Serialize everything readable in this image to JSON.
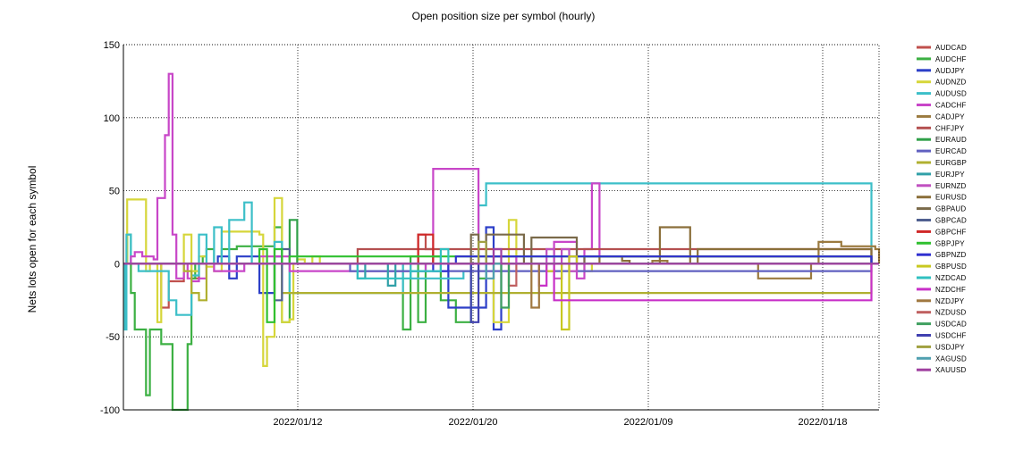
{
  "chart_data": {
    "type": "line",
    "title": "Open position size per symbol (hourly)",
    "xlabel": "",
    "ylabel": "Nets lots open for each symbol",
    "ylim": [
      -100,
      150
    ],
    "yticks": [
      -100,
      -50,
      0,
      50,
      100,
      150
    ],
    "xtick_labels": [
      "2022/01/12",
      "2022/01/20",
      "2022/01/09",
      "2022/01/18"
    ],
    "x_range": [
      0,
      100
    ],
    "grid": true,
    "legend_position": "right",
    "series": [
      {
        "name": "AUDCAD",
        "color": "#c0504d",
        "x": [
          0,
          5,
          6,
          8,
          9,
          10,
          34,
          39,
          40,
          41,
          99,
          100
        ],
        "y": [
          0,
          -30,
          -12,
          0,
          -10,
          0,
          0,
          20,
          10,
          0,
          0,
          0
        ]
      },
      {
        "name": "AUDCHF",
        "color": "#3cb043",
        "x": [
          0,
          0.5,
          1,
          1.5,
          2.5,
          3,
          3.5,
          5,
          5.5,
          6.5,
          7.5,
          8.5,
          9,
          9.5,
          10,
          10.5,
          11,
          12,
          13,
          15,
          19,
          20,
          21,
          22,
          36,
          37,
          38,
          39,
          40,
          41,
          42,
          44,
          46,
          47,
          48,
          99,
          100
        ],
        "y": [
          0,
          20,
          -20,
          -45,
          -45,
          -90,
          -45,
          -55,
          -55,
          -100,
          -100,
          -55,
          -10,
          0,
          0,
          5,
          10,
          0,
          10,
          12,
          12,
          25,
          -40,
          0,
          0,
          -45,
          5,
          -40,
          0,
          5,
          -25,
          -40,
          0,
          -10,
          0,
          0,
          0
        ]
      },
      {
        "name": "AUDJPY",
        "color": "#2c3fc8",
        "x": [
          0,
          10,
          12,
          12.5,
          14,
          15,
          16,
          18,
          20,
          21,
          42,
          43,
          48,
          49,
          50,
          99,
          100
        ],
        "y": [
          0,
          0,
          0,
          5,
          -10,
          5,
          5,
          -20,
          5,
          0,
          0,
          -30,
          25,
          -45,
          0,
          0,
          0
        ]
      },
      {
        "name": "AUDNZD",
        "color": "#d6d63a",
        "x": [
          0,
          0.5,
          1,
          3,
          3.5,
          4,
          4.5,
          5,
          8,
          9,
          10,
          11,
          12,
          13,
          15,
          18,
          18.5,
          19,
          20,
          21,
          22,
          22.5,
          23,
          24,
          25,
          26,
          44,
          49,
          51,
          52,
          60,
          61,
          62,
          99,
          100
        ],
        "y": [
          0,
          44,
          44,
          -5,
          0,
          0,
          -40,
          0,
          20,
          -5,
          5,
          -2,
          -5,
          22,
          22,
          20,
          -70,
          -50,
          45,
          -40,
          -38,
          0,
          3,
          0,
          5,
          0,
          0,
          -40,
          30,
          0,
          0,
          -5,
          0,
          0,
          0
        ]
      },
      {
        "name": "AUDUSD",
        "color": "#3cbfc8",
        "x": [
          0,
          0.2,
          0.4,
          1,
          2,
          6,
          7,
          9,
          10,
          11,
          12,
          13,
          14,
          16,
          17,
          19,
          19.5,
          20,
          21,
          22,
          37,
          38,
          44,
          45,
          46,
          47,
          48,
          99,
          100
        ],
        "y": [
          0,
          -45,
          20,
          0,
          -5,
          -25,
          -35,
          -8,
          20,
          0,
          25,
          0,
          30,
          42,
          0,
          0,
          0,
          15,
          0,
          -20,
          0,
          -10,
          -10,
          -5,
          0,
          40,
          55,
          0,
          0
        ]
      },
      {
        "name": "CADCHF",
        "color": "#c846c8",
        "x": [
          0,
          1,
          1.5,
          2.5,
          4,
          4.5,
          5,
          5.5,
          6,
          6.5,
          7,
          7.5,
          8,
          8.5,
          9,
          10,
          11,
          12,
          14,
          16,
          18,
          22,
          40,
          41,
          42,
          44,
          45,
          46,
          47,
          48,
          50,
          52,
          56,
          57,
          59,
          60,
          61,
          62,
          63,
          99,
          100
        ],
        "y": [
          0,
          5,
          8,
          5,
          3,
          45,
          45,
          88,
          130,
          20,
          -10,
          -10,
          0,
          -10,
          -12,
          -10,
          0,
          -5,
          -5,
          0,
          5,
          -5,
          0,
          65,
          65,
          65,
          65,
          65,
          0,
          5,
          5,
          0,
          0,
          15,
          15,
          -10,
          10,
          55,
          5,
          0,
          0
        ]
      },
      {
        "name": "CADJPY",
        "color": "#9b7a3f",
        "x": [
          0,
          60,
          62,
          65,
          68,
          70,
          72,
          80,
          84,
          90,
          91,
          92,
          95,
          99,
          99.5,
          100
        ],
        "y": [
          0,
          0,
          0,
          0,
          0,
          2,
          0,
          0,
          -10,
          -10,
          0,
          15,
          12,
          12,
          10,
          0
        ]
      },
      {
        "name": "CHFJPY",
        "color": "#b45050",
        "x": [
          0,
          30,
          31,
          99,
          100
        ],
        "y": [
          0,
          0,
          10,
          0,
          0
        ]
      },
      {
        "name": "EURAUD",
        "color": "#2fa048",
        "x": [
          0,
          21,
          22,
          23,
          24,
          60,
          99,
          100
        ],
        "y": [
          0,
          0,
          30,
          0,
          0,
          0,
          0,
          0
        ]
      },
      {
        "name": "EURCAD",
        "color": "#6060c0",
        "x": [
          0,
          28,
          30,
          99,
          100
        ],
        "y": [
          0,
          0,
          -5,
          0,
          0
        ]
      },
      {
        "name": "EURGBP",
        "color": "#b0b030",
        "x": [
          0,
          8,
          9,
          10,
          11,
          12,
          20,
          21,
          99,
          100
        ],
        "y": [
          0,
          -5,
          -20,
          -25,
          0,
          0,
          0,
          -20,
          0,
          0
        ]
      },
      {
        "name": "EURJPY",
        "color": "#30a0a8",
        "x": [
          0,
          30,
          31,
          32,
          35,
          36,
          60,
          99,
          100
        ],
        "y": [
          0,
          0,
          -10,
          0,
          -15,
          0,
          0,
          0,
          0
        ]
      },
      {
        "name": "EURNZD",
        "color": "#c050c0",
        "x": [
          0,
          55,
          56,
          57,
          58,
          59,
          60,
          99,
          100
        ],
        "y": [
          0,
          0,
          10,
          -10,
          10,
          -5,
          0,
          0,
          0
        ]
      },
      {
        "name": "EURUSD",
        "color": "#8b6f3a",
        "x": [
          0,
          62,
          63,
          66,
          67,
          70,
          71,
          75,
          76,
          99,
          100
        ],
        "y": [
          0,
          0,
          5,
          2,
          0,
          0,
          25,
          0,
          10,
          0,
          0
        ]
      },
      {
        "name": "GBPAUD",
        "color": "#7a6a4a",
        "x": [
          0,
          45,
          46,
          47,
          48,
          53,
          54,
          60,
          61,
          99,
          100
        ],
        "y": [
          0,
          0,
          20,
          0,
          20,
          0,
          18,
          0,
          5,
          0,
          0
        ]
      },
      {
        "name": "GBPCAD",
        "color": "#506090",
        "x": [
          0,
          19,
          20,
          21,
          22,
          99,
          100
        ],
        "y": [
          0,
          0,
          -25,
          10,
          0,
          0,
          0
        ]
      },
      {
        "name": "GBPCHF",
        "color": "#d02828",
        "x": [
          0,
          38,
          39,
          40,
          41,
          42,
          99,
          100
        ],
        "y": [
          0,
          0,
          20,
          20,
          0,
          0,
          0,
          0
        ]
      },
      {
        "name": "GBPJPY",
        "color": "#30c030",
        "x": [
          0,
          17,
          18,
          19,
          20,
          21,
          22,
          99,
          100
        ],
        "y": [
          0,
          0,
          10,
          -40,
          10,
          0,
          5,
          0,
          0
        ]
      },
      {
        "name": "GBPNZD",
        "color": "#3030d0",
        "x": [
          0,
          40,
          41,
          42,
          43,
          44,
          99,
          100
        ],
        "y": [
          0,
          0,
          -5,
          -5,
          0,
          5,
          0,
          0
        ]
      },
      {
        "name": "GBPUSD",
        "color": "#c8c820",
        "x": [
          0,
          55,
          56,
          57,
          58,
          59,
          60,
          99,
          100
        ],
        "y": [
          0,
          0,
          -5,
          0,
          -45,
          5,
          0,
          0,
          0
        ]
      },
      {
        "name": "NZDCAD",
        "color": "#30c0c0",
        "x": [
          0,
          30,
          31,
          37,
          38,
          42,
          43,
          99,
          100
        ],
        "y": [
          0,
          0,
          -10,
          -10,
          -5,
          10,
          0,
          0,
          0
        ]
      },
      {
        "name": "NZDCHF",
        "color": "#c830c8",
        "x": [
          0,
          54,
          55,
          56,
          57,
          99,
          100
        ],
        "y": [
          0,
          0,
          -15,
          0,
          -25,
          0,
          0
        ]
      },
      {
        "name": "NZDJPY",
        "color": "#a07840",
        "x": [
          0,
          53,
          54,
          55,
          99,
          100
        ],
        "y": [
          0,
          0,
          -30,
          0,
          0,
          0
        ]
      },
      {
        "name": "NZDUSD",
        "color": "#c06060",
        "x": [
          0,
          50,
          51,
          52,
          99,
          100
        ],
        "y": [
          0,
          0,
          -15,
          0,
          0,
          0
        ]
      },
      {
        "name": "USDCAD",
        "color": "#40a060",
        "x": [
          0,
          49,
          50,
          51,
          99,
          100
        ],
        "y": [
          0,
          0,
          -30,
          0,
          0,
          0
        ]
      },
      {
        "name": "USDCHF",
        "color": "#4040b0",
        "x": [
          0,
          45,
          46,
          47,
          99,
          100
        ],
        "y": [
          0,
          0,
          -40,
          0,
          0,
          0
        ]
      },
      {
        "name": "USDJPY",
        "color": "#a0a040",
        "x": [
          0,
          46,
          47,
          48,
          99,
          100
        ],
        "y": [
          0,
          0,
          15,
          0,
          0,
          0
        ]
      },
      {
        "name": "XAGUSD",
        "color": "#50a0b0",
        "x": [
          0,
          47,
          48,
          49,
          99,
          100
        ],
        "y": [
          0,
          0,
          -10,
          0,
          0,
          0
        ]
      },
      {
        "name": "XAUUSD",
        "color": "#a040a0",
        "x": [
          0,
          48,
          49,
          50,
          99,
          100
        ],
        "y": [
          0,
          0,
          10,
          0,
          0,
          0
        ]
      }
    ]
  }
}
